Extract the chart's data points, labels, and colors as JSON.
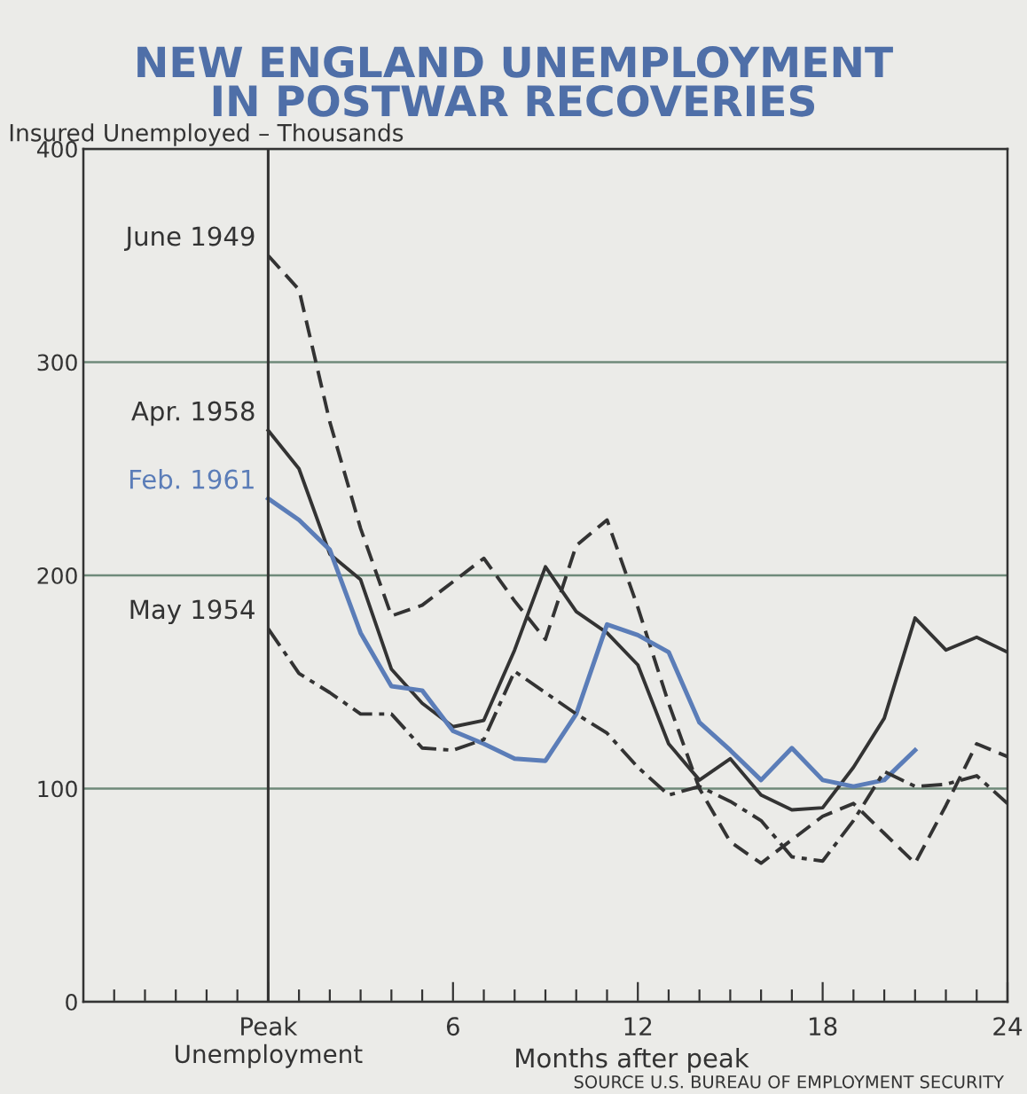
{
  "chart_data": {
    "type": "line",
    "title": "NEW ENGLAND UNEMPLOYMENT\nIN POSTWAR RECOVERIES",
    "ylabel": "Insured Unemployed – Thousands",
    "xlabel": "Months after peak",
    "annotations": [
      "SOURCE U.S. BUREAU OF EMPLOYMENT SECURITY"
    ],
    "x": [
      0,
      1,
      2,
      3,
      4,
      5,
      6,
      7,
      8,
      9,
      10,
      11,
      12,
      13,
      14,
      15,
      16,
      17,
      18,
      19,
      20,
      21,
      22,
      23,
      24
    ],
    "series": [
      {
        "name": "June 1949",
        "color": "#333333",
        "line_style": "dashed",
        "values": [
          350,
          334,
          272,
          222,
          181,
          186,
          197,
          208,
          188,
          170,
          214,
          226,
          185,
          140,
          100,
          75,
          65,
          76,
          87,
          93,
          79,
          65,
          92,
          121,
          115
        ]
      },
      {
        "name": "Apr. 1958",
        "color": "#333333",
        "line_style": "solid",
        "values": [
          268,
          250,
          210,
          198,
          156,
          140,
          129,
          132,
          165,
          204,
          183,
          173,
          158,
          121,
          104,
          114,
          97,
          90,
          91,
          110,
          133,
          180,
          165,
          171,
          164
        ]
      },
      {
        "name": "Feb. 1961",
        "color": "#5b7db8",
        "line_style": "solid",
        "values": [
          236,
          226,
          212,
          173,
          148,
          146,
          127,
          121,
          114,
          113,
          135,
          177,
          172,
          164,
          131,
          118,
          104,
          119,
          104,
          101,
          104,
          118,
          null,
          null,
          null
        ]
      },
      {
        "name": "May 1954",
        "color": "#333333",
        "line_style": "dashdot",
        "values": [
          175,
          154,
          145,
          135,
          135,
          119,
          118,
          123,
          155,
          145,
          135,
          126,
          110,
          97,
          101,
          94,
          85,
          68,
          66,
          85,
          108,
          101,
          102,
          106,
          93
        ]
      }
    ],
    "xlim": [
      -6,
      24
    ],
    "ylim": [
      0,
      400
    ],
    "xticks": [
      {
        "value": -5,
        "label": null
      },
      {
        "value": -4,
        "label": null
      },
      {
        "value": -3,
        "label": null
      },
      {
        "value": -2,
        "label": null
      },
      {
        "value": -1,
        "label": null
      },
      {
        "value": 0,
        "label": "Peak\nUnemployment"
      },
      {
        "value": 1,
        "label": null
      },
      {
        "value": 2,
        "label": null
      },
      {
        "value": 3,
        "label": null
      },
      {
        "value": 4,
        "label": null
      },
      {
        "value": 5,
        "label": null
      },
      6,
      {
        "value": 7,
        "label": null
      },
      {
        "value": 8,
        "label": null
      },
      {
        "value": 9,
        "label": null
      },
      {
        "value": 10,
        "label": null
      },
      {
        "value": 11,
        "label": null
      },
      12,
      {
        "value": 13,
        "label": null
      },
      {
        "value": 14,
        "label": null
      },
      {
        "value": 15,
        "label": null
      },
      {
        "value": 16,
        "label": null
      },
      {
        "value": 17,
        "label": null
      },
      18,
      {
        "value": 19,
        "label": null
      },
      {
        "value": 20,
        "label": null
      },
      {
        "value": 21,
        "label": null
      },
      {
        "value": 22,
        "label": null
      },
      {
        "value": 23,
        "label": null
      },
      24
    ],
    "yticks": [
      0,
      100,
      200,
      300,
      400
    ],
    "grid": "y",
    "legend": false,
    "ref_lines": [
      {
        "axis": "x",
        "value": 0,
        "color": "#333333"
      }
    ]
  }
}
